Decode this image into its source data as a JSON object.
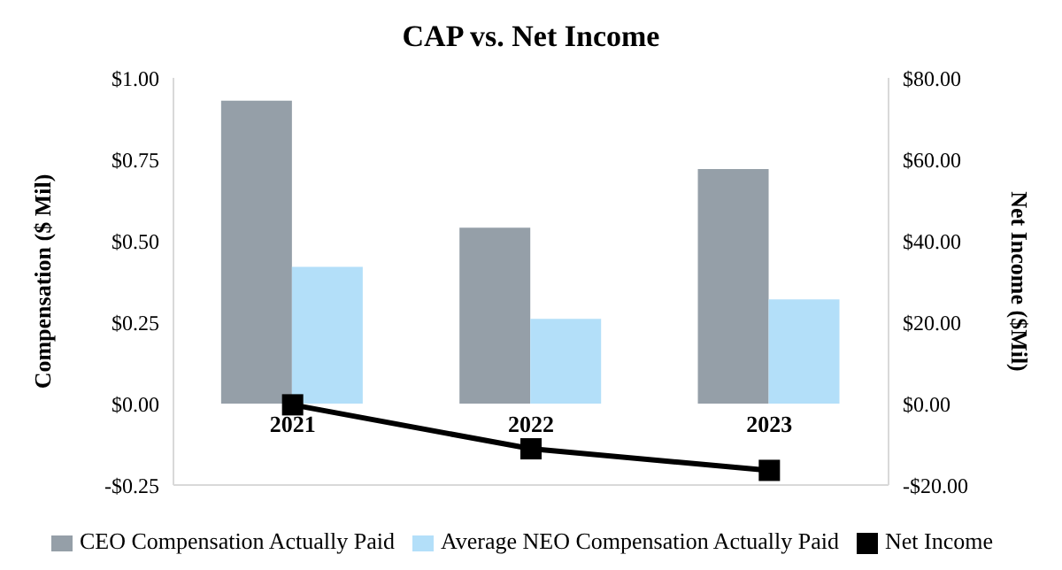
{
  "chart_data": {
    "type": "bar",
    "title": "CAP vs. Net Income",
    "ylabel": "Compensation ($ Mil)",
    "y2label": "Net Income ($Mil)",
    "categories": [
      "2021",
      "2022",
      "2023"
    ],
    "series": [
      {
        "name": "CEO Compensation Actually Paid",
        "color": "#959fa8",
        "values": [
          0.93,
          0.54,
          0.72
        ]
      },
      {
        "name": "Average NEO Compensation Actually Paid",
        "color": "#b3dff9",
        "values": [
          0.42,
          0.26,
          0.32
        ]
      },
      {
        "name": "Net Income",
        "type": "line",
        "axis": "y2",
        "color": "#000000",
        "marker": "square",
        "values": [
          -0.3,
          -11.1,
          -16.4
        ]
      }
    ],
    "ylim": [
      -0.25,
      1
    ],
    "yticks": [
      {
        "value": -0.25,
        "label": "-$0.25"
      },
      {
        "value": 0,
        "label": "$0.00"
      },
      {
        "value": 0.25,
        "label": "$0.25"
      },
      {
        "value": 0.5,
        "label": "$0.50"
      },
      {
        "value": 0.75,
        "label": "$0.75"
      },
      {
        "value": 1,
        "label": "$1.00"
      }
    ],
    "y2lim": [
      -20,
      80
    ],
    "y2ticks": [
      {
        "value": -20,
        "label": "-$20.00"
      },
      {
        "value": 0,
        "label": "$0.00"
      },
      {
        "value": 20,
        "label": "$20.00"
      },
      {
        "value": 40,
        "label": "$40.00"
      },
      {
        "value": 60,
        "label": "$60.00"
      },
      {
        "value": 80,
        "label": "$80.00"
      }
    ],
    "legend": "bottom"
  }
}
